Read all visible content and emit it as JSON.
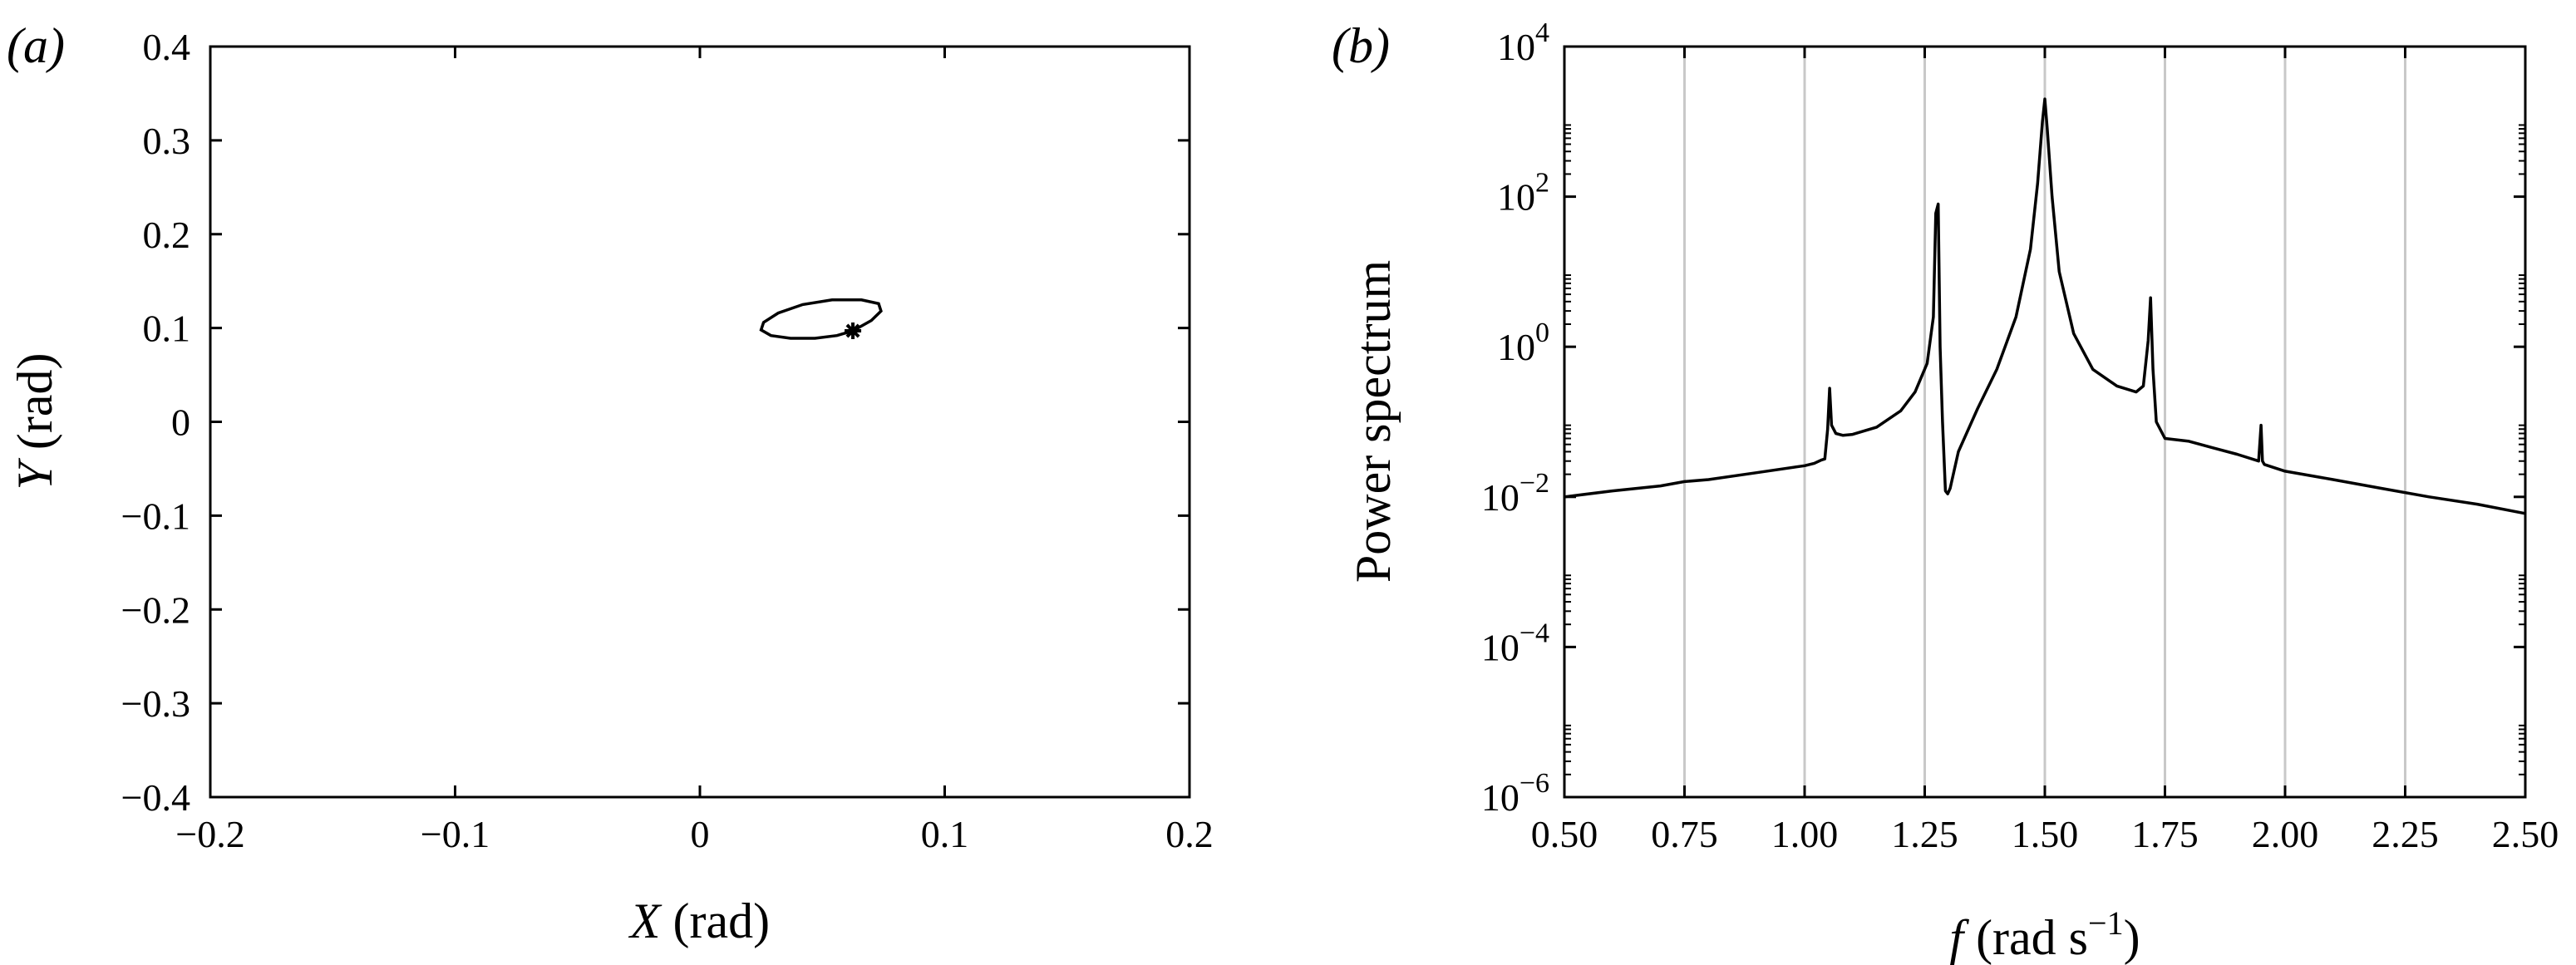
{
  "chart_data": [
    {
      "type": "line",
      "panel_label": "(a)",
      "xlabel_var": "X",
      "xlabel_unit": " (rad)",
      "ylabel_var": "Y",
      "ylabel_unit": " (rad)",
      "xlim": [
        -0.2,
        0.2
      ],
      "ylim": [
        -0.4,
        0.4
      ],
      "x_ticks": [
        -0.2,
        -0.1,
        0,
        0.1,
        0.2
      ],
      "x_tick_labels": [
        "−0.2",
        "−0.1",
        "0",
        "0.1",
        "0.2"
      ],
      "y_ticks": [
        -0.4,
        -0.3,
        -0.2,
        -0.1,
        0,
        0.1,
        0.2,
        0.3,
        0.4
      ],
      "y_tick_labels": [
        "−0.4",
        "−0.3",
        "−0.2",
        "−0.1",
        "0",
        "0.1",
        "0.2",
        "0.3",
        "0.4"
      ],
      "grid": false,
      "orbit": {
        "center": [
          0.048,
          0.106
        ],
        "points": [
          [
            0.0625,
            0.097
          ],
          [
            0.07,
            0.108
          ],
          [
            0.074,
            0.118
          ],
          [
            0.073,
            0.126
          ],
          [
            0.066,
            0.13
          ],
          [
            0.054,
            0.13
          ],
          [
            0.042,
            0.125
          ],
          [
            0.032,
            0.116
          ],
          [
            0.026,
            0.106
          ],
          [
            0.025,
            0.098
          ],
          [
            0.029,
            0.092
          ],
          [
            0.037,
            0.089
          ],
          [
            0.047,
            0.089
          ],
          [
            0.056,
            0.092
          ],
          [
            0.0625,
            0.097
          ]
        ]
      },
      "marker": {
        "x": 0.0625,
        "y": 0.097,
        "symbol": "asterisk"
      }
    },
    {
      "type": "line",
      "panel_label": "(b)",
      "xlabel_var": "f",
      "xlabel_unit_main": " (rad s",
      "xlabel_unit_sup": "−1",
      "xlabel_unit_close": ")",
      "ylabel": "Power spectrum",
      "xlim": [
        0.5,
        2.5
      ],
      "ylim_log10": [
        -6,
        4
      ],
      "y_scale": "log",
      "x_ticks": [
        0.5,
        0.75,
        1.0,
        1.25,
        1.5,
        1.75,
        2.0,
        2.25,
        2.5
      ],
      "x_tick_labels": [
        "0.50",
        "0.75",
        "1.00",
        "1.25",
        "1.50",
        "1.75",
        "2.00",
        "2.25",
        "2.50"
      ],
      "y_tick_exponents": [
        -6,
        -4,
        -2,
        0,
        2,
        4
      ],
      "y_tick_base": "10",
      "y_tick_exp_labels": [
        "−6",
        "−4",
        "−2",
        "0",
        "2",
        "4"
      ],
      "grid": "vertical",
      "series": [
        {
          "x": [
            0.5,
            0.6,
            0.7,
            0.75,
            0.8,
            0.9,
            1.0,
            1.02,
            1.035,
            1.042,
            1.048,
            1.052,
            1.056,
            1.065,
            1.08,
            1.1,
            1.15,
            1.2,
            1.23,
            1.255,
            1.268,
            1.273,
            1.278,
            1.282,
            1.287,
            1.293,
            1.298,
            1.303,
            1.32,
            1.36,
            1.4,
            1.44,
            1.47,
            1.485,
            1.495,
            1.5,
            1.505,
            1.515,
            1.53,
            1.56,
            1.6,
            1.65,
            1.69,
            1.705,
            1.715,
            1.72,
            1.725,
            1.732,
            1.75,
            1.8,
            1.85,
            1.9,
            1.945,
            1.95,
            1.953,
            1.957,
            2.0,
            2.1,
            2.2,
            2.3,
            2.4,
            2.5
          ],
          "y": [
            0.01,
            0.012,
            0.014,
            0.016,
            0.017,
            0.021,
            0.026,
            0.028,
            0.031,
            0.032,
            0.08,
            0.28,
            0.09,
            0.07,
            0.066,
            0.068,
            0.085,
            0.14,
            0.25,
            0.6,
            2.5,
            60,
            80,
            1.0,
            0.1,
            0.012,
            0.011,
            0.013,
            0.04,
            0.15,
            0.5,
            2.5,
            20,
            150,
            1000,
            2000,
            800,
            100,
            10,
            1.5,
            0.5,
            0.3,
            0.25,
            0.3,
            1.2,
            4.5,
            0.5,
            0.1,
            0.06,
            0.055,
            0.045,
            0.037,
            0.03,
            0.09,
            0.03,
            0.027,
            0.022,
            0.017,
            0.013,
            0.01,
            0.008,
            0.006
          ]
        }
      ]
    }
  ]
}
